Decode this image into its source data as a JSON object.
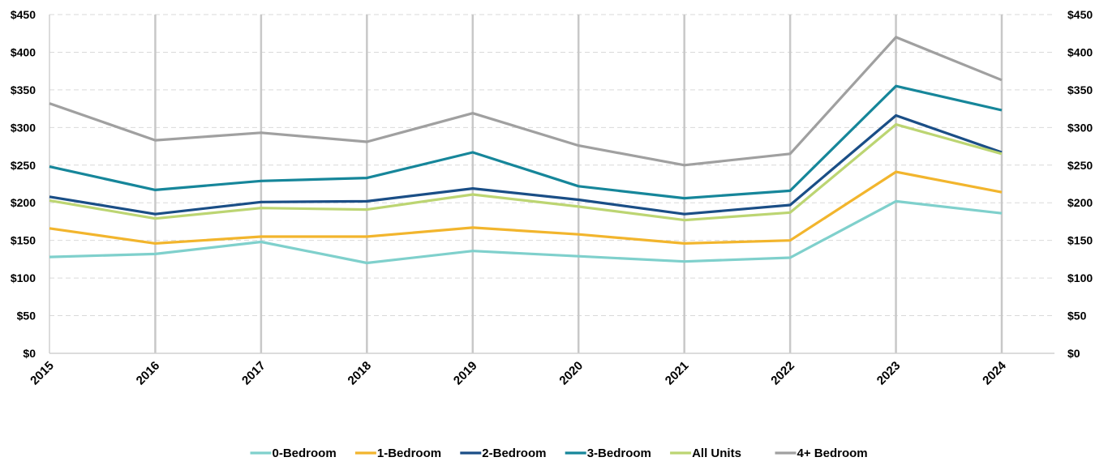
{
  "chart_data": {
    "type": "line",
    "x": [
      "2015",
      "2016",
      "2017",
      "2018",
      "2019",
      "2020",
      "2021",
      "2022",
      "2023",
      "2024"
    ],
    "ylim": [
      0,
      450
    ],
    "y_ticks": [
      "$0",
      "$50",
      "$100",
      "$150",
      "$200",
      "$250",
      "$300",
      "$350",
      "$400",
      "$450"
    ],
    "y_tick_values": [
      0,
      50,
      100,
      150,
      200,
      250,
      300,
      350,
      400,
      450
    ],
    "secondary_y_axis": true,
    "grid": "horizontal dashed, vertical solid",
    "legend_position": "bottom",
    "series": [
      {
        "name": "0-Bedroom",
        "color": "#7fd0cc",
        "values": [
          128,
          132,
          148,
          120,
          136,
          129,
          122,
          127,
          202,
          186
        ]
      },
      {
        "name": "1-Bedroom",
        "color": "#f2b52d",
        "values": [
          166,
          146,
          155,
          155,
          167,
          158,
          146,
          150,
          241,
          214
        ]
      },
      {
        "name": "2-Bedroom",
        "color": "#1a4e86",
        "values": [
          208,
          185,
          201,
          202,
          219,
          204,
          185,
          197,
          316,
          267
        ]
      },
      {
        "name": "3-Bedroom",
        "color": "#16869a",
        "values": [
          248,
          217,
          229,
          233,
          267,
          222,
          206,
          216,
          355,
          323
        ]
      },
      {
        "name": "All Units",
        "color": "#bcd572",
        "values": [
          203,
          179,
          193,
          191,
          211,
          195,
          177,
          187,
          304,
          265
        ]
      },
      {
        "name": "4+ Bedroom",
        "color": "#a0a0a0",
        "values": [
          332,
          283,
          293,
          281,
          319,
          276,
          250,
          265,
          420,
          363
        ]
      }
    ]
  }
}
